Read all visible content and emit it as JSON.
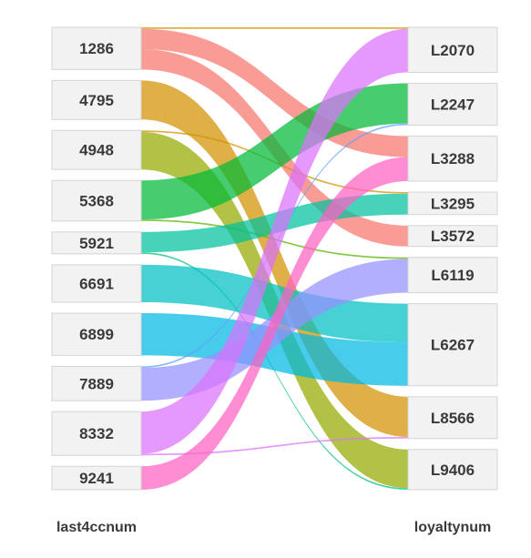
{
  "chart_data": {
    "type": "alluvial",
    "axes": [
      "last4ccnum",
      "loyaltynum"
    ],
    "left_nodes": [
      "1286",
      "4795",
      "4948",
      "5368",
      "5921",
      "6691",
      "6899",
      "7889",
      "8332",
      "9241"
    ],
    "right_nodes": [
      "L2070",
      "L2247",
      "L3288",
      "L3295",
      "L3572",
      "L6119",
      "L6267",
      "L8566",
      "L9406"
    ],
    "flows": [
      {
        "source": "1286",
        "target": "L3288",
        "value": 13,
        "color": "#f8766d"
      },
      {
        "source": "1286",
        "target": "L3572",
        "value": 13,
        "color": "#f8766d"
      },
      {
        "source": "1286",
        "target": "L2070",
        "value": 1,
        "color": "#d39200"
      },
      {
        "source": "4795",
        "target": "L8566",
        "value": 25,
        "color": "#d39200"
      },
      {
        "source": "4948",
        "target": "L3295",
        "value": 1,
        "color": "#d39200"
      },
      {
        "source": "4948",
        "target": "L9406",
        "value": 24,
        "color": "#93aa00"
      },
      {
        "source": "5368",
        "target": "L2247",
        "value": 25,
        "color": "#00ba38"
      },
      {
        "source": "5368",
        "target": "L6119",
        "value": 1,
        "color": "#5bb300"
      },
      {
        "source": "5921",
        "target": "L3295",
        "value": 13,
        "color": "#00c19f"
      },
      {
        "source": "5921",
        "target": "L9406",
        "value": 1,
        "color": "#00bf7d"
      },
      {
        "source": "6691",
        "target": "L6267",
        "value": 24,
        "color": "#00bfc4"
      },
      {
        "source": "6899",
        "target": "L6267",
        "value": 27,
        "color": "#00b9e3"
      },
      {
        "source": "7889",
        "target": "L2247",
        "value": 1,
        "color": "#619cff"
      },
      {
        "source": "7889",
        "target": "L6119",
        "value": 21,
        "color": "#9590ff"
      },
      {
        "source": "8332",
        "target": "L2070",
        "value": 27,
        "color": "#db72fb"
      },
      {
        "source": "8332",
        "target": "L8566",
        "value": 1,
        "color": "#db72fb"
      },
      {
        "source": "9241",
        "target": "L3288",
        "value": 15,
        "color": "#ff61c3"
      }
    ]
  }
}
